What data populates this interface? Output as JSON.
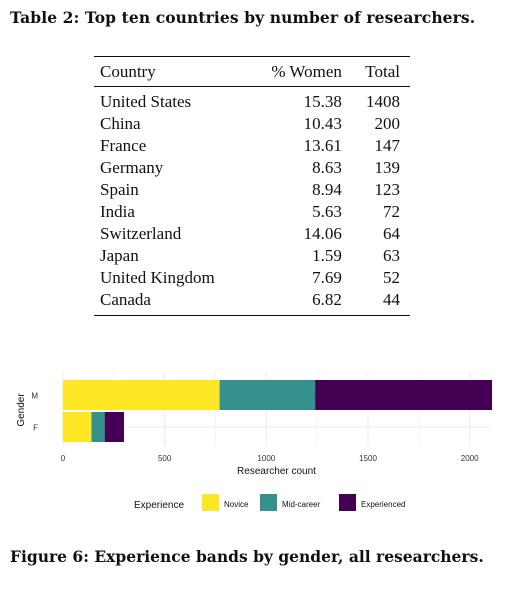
{
  "table": {
    "caption": "Table 2: Top ten countries by number of researchers.",
    "headers": [
      "Country",
      "% Women",
      "Total"
    ],
    "rows": [
      [
        "United States",
        "15.38",
        "1408"
      ],
      [
        "China",
        "10.43",
        "200"
      ],
      [
        "France",
        "13.61",
        "147"
      ],
      [
        "Germany",
        "8.63",
        "139"
      ],
      [
        "Spain",
        "8.94",
        "123"
      ],
      [
        "India",
        "5.63",
        "72"
      ],
      [
        "Switzerland",
        "14.06",
        "64"
      ],
      [
        "Japan",
        "1.59",
        "63"
      ],
      [
        "United Kingdom",
        "7.69",
        "52"
      ],
      [
        "Canada",
        "6.82",
        "44"
      ]
    ]
  },
  "chart_data": {
    "type": "bar",
    "orientation": "horizontal",
    "stacked": true,
    "categories": [
      "M",
      "F"
    ],
    "series": [
      {
        "name": "Novice",
        "color": "#FDE725",
        "values": [
          770,
          140
        ]
      },
      {
        "name": "Mid-career",
        "color": "#35918C",
        "values": [
          470,
          65
        ]
      },
      {
        "name": "Experienced",
        "color": "#440154",
        "values": [
          870,
          95
        ]
      }
    ],
    "xlabel": "Researcher count",
    "ylabel": "Gender",
    "xlim": [
      0,
      2100
    ],
    "xticks": [
      "0",
      "500",
      "1000",
      "1500",
      "2000"
    ],
    "xtick_values": [
      0,
      500,
      1000,
      1500,
      2000
    ],
    "legend_title": "Experience",
    "legend_position": "bottom",
    "grid": true
  },
  "figure": {
    "caption": "Figure 6: Experience bands by gender, all researchers."
  }
}
